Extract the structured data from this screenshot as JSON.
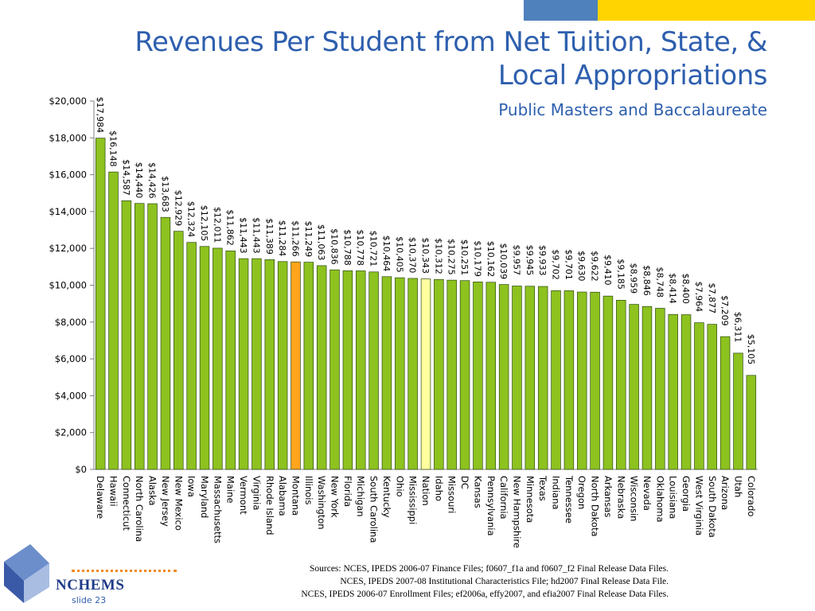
{
  "header": {
    "title_line1": "Revenues Per Student from Net Tuition, State, &",
    "title_line2": "Local Appropriations",
    "subtitle": "Public Masters and Baccalaureate"
  },
  "chart_data": {
    "type": "bar",
    "title": "Revenues Per Student from Net Tuition, State, & Local Appropriations",
    "subtitle": "Public Masters and Baccalaureate",
    "ylim": [
      0,
      20000
    ],
    "y_ticks": [
      "$0",
      "$2,000",
      "$4,000",
      "$6,000",
      "$8,000",
      "$10,000",
      "$12,000",
      "$14,000",
      "$16,000",
      "$18,000",
      "$20,000"
    ],
    "grid": false,
    "categories": [
      "Delaware",
      "Hawaii",
      "Connecticut",
      "North Carolina",
      "Alaska",
      "New Jersey",
      "New Mexico",
      "Iowa",
      "Maryland",
      "Massachusetts",
      "Maine",
      "Vermont",
      "Virginia",
      "Rhode Island",
      "Alabama",
      "Montana",
      "Illinois",
      "Washington",
      "New York",
      "Florida",
      "Michigan",
      "South Carolina",
      "Kentucky",
      "Ohio",
      "Mississippi",
      "Nation",
      "Idaho",
      "Missouri",
      "DC",
      "Kansas",
      "Pennsylvania",
      "California",
      "New Hampshire",
      "Minnesota",
      "Texas",
      "Indiana",
      "Tennessee",
      "Oregon",
      "North Dakota",
      "Arkansas",
      "Nebraska",
      "Wisconsin",
      "Nevada",
      "Oklahoma",
      "Louisiana",
      "Georgia",
      "West Virginia",
      "South Dakota",
      "Arizona",
      "Utah",
      "Colorado"
    ],
    "values": [
      17984,
      16148,
      14587,
      14440,
      14426,
      13683,
      12929,
      12324,
      12105,
      12011,
      11862,
      11443,
      11443,
      11389,
      11284,
      11266,
      11249,
      11063,
      10836,
      10788,
      10778,
      10721,
      10464,
      10405,
      10370,
      10343,
      10312,
      10275,
      10251,
      10179,
      10162,
      10039,
      9957,
      9945,
      9933,
      9702,
      9701,
      9630,
      9622,
      9410,
      9185,
      8959,
      8846,
      8748,
      8414,
      8400,
      7964,
      7877,
      7209,
      6311,
      5105
    ],
    "value_labels": [
      "$17,984",
      "$16,148",
      "$14,587",
      "$14,440",
      "$14,426",
      "$13,683",
      "$12,929",
      "$12,324",
      "$12,105",
      "$12,011",
      "$11,862",
      "$11,443",
      "$11,443",
      "$11,389",
      "$11,284",
      "$11,266",
      "$11,249",
      "$11,063",
      "$10,836",
      "$10,788",
      "$10,778",
      "$10,721",
      "$10,464",
      "$10,405",
      "$10,370",
      "$10,343",
      "$10,312",
      "$10,275",
      "$10,251",
      "$10,179",
      "$10,162",
      "$10,039",
      "$9,957",
      "$9,945",
      "$9,933",
      "$9,702",
      "$9,701",
      "$9,630",
      "$9,622",
      "$9,410",
      "$9,185",
      "$8,959",
      "$8,846",
      "$8,748",
      "$8,414",
      "$8,400",
      "$7,964",
      "$7,877",
      "$7,209",
      "$6,311",
      "$5,105"
    ],
    "colors": {
      "default": "#8dc21f",
      "highlight_montana": "#ffa41c",
      "highlight_nation": "#ffffa0",
      "border": "#2d4a12"
    },
    "highlight": {
      "Montana": "highlight_montana",
      "Nation": "highlight_nation"
    }
  },
  "footer": {
    "sources": [
      "Sources:  NCES, IPEDS 2006-07 Finance Files; f0607_f1a and f0607_f2 Final Release Data Files.",
      "NCES, IPEDS 2007-08 Institutional Characteristics File; hd2007 Final Release Data File.",
      "NCES, IPEDS 2006-07 Enrollment Files; ef2006a, effy2007, and efia2007 Final Release Data Files."
    ],
    "logo": "NCHEMS",
    "slide": "slide 23"
  }
}
